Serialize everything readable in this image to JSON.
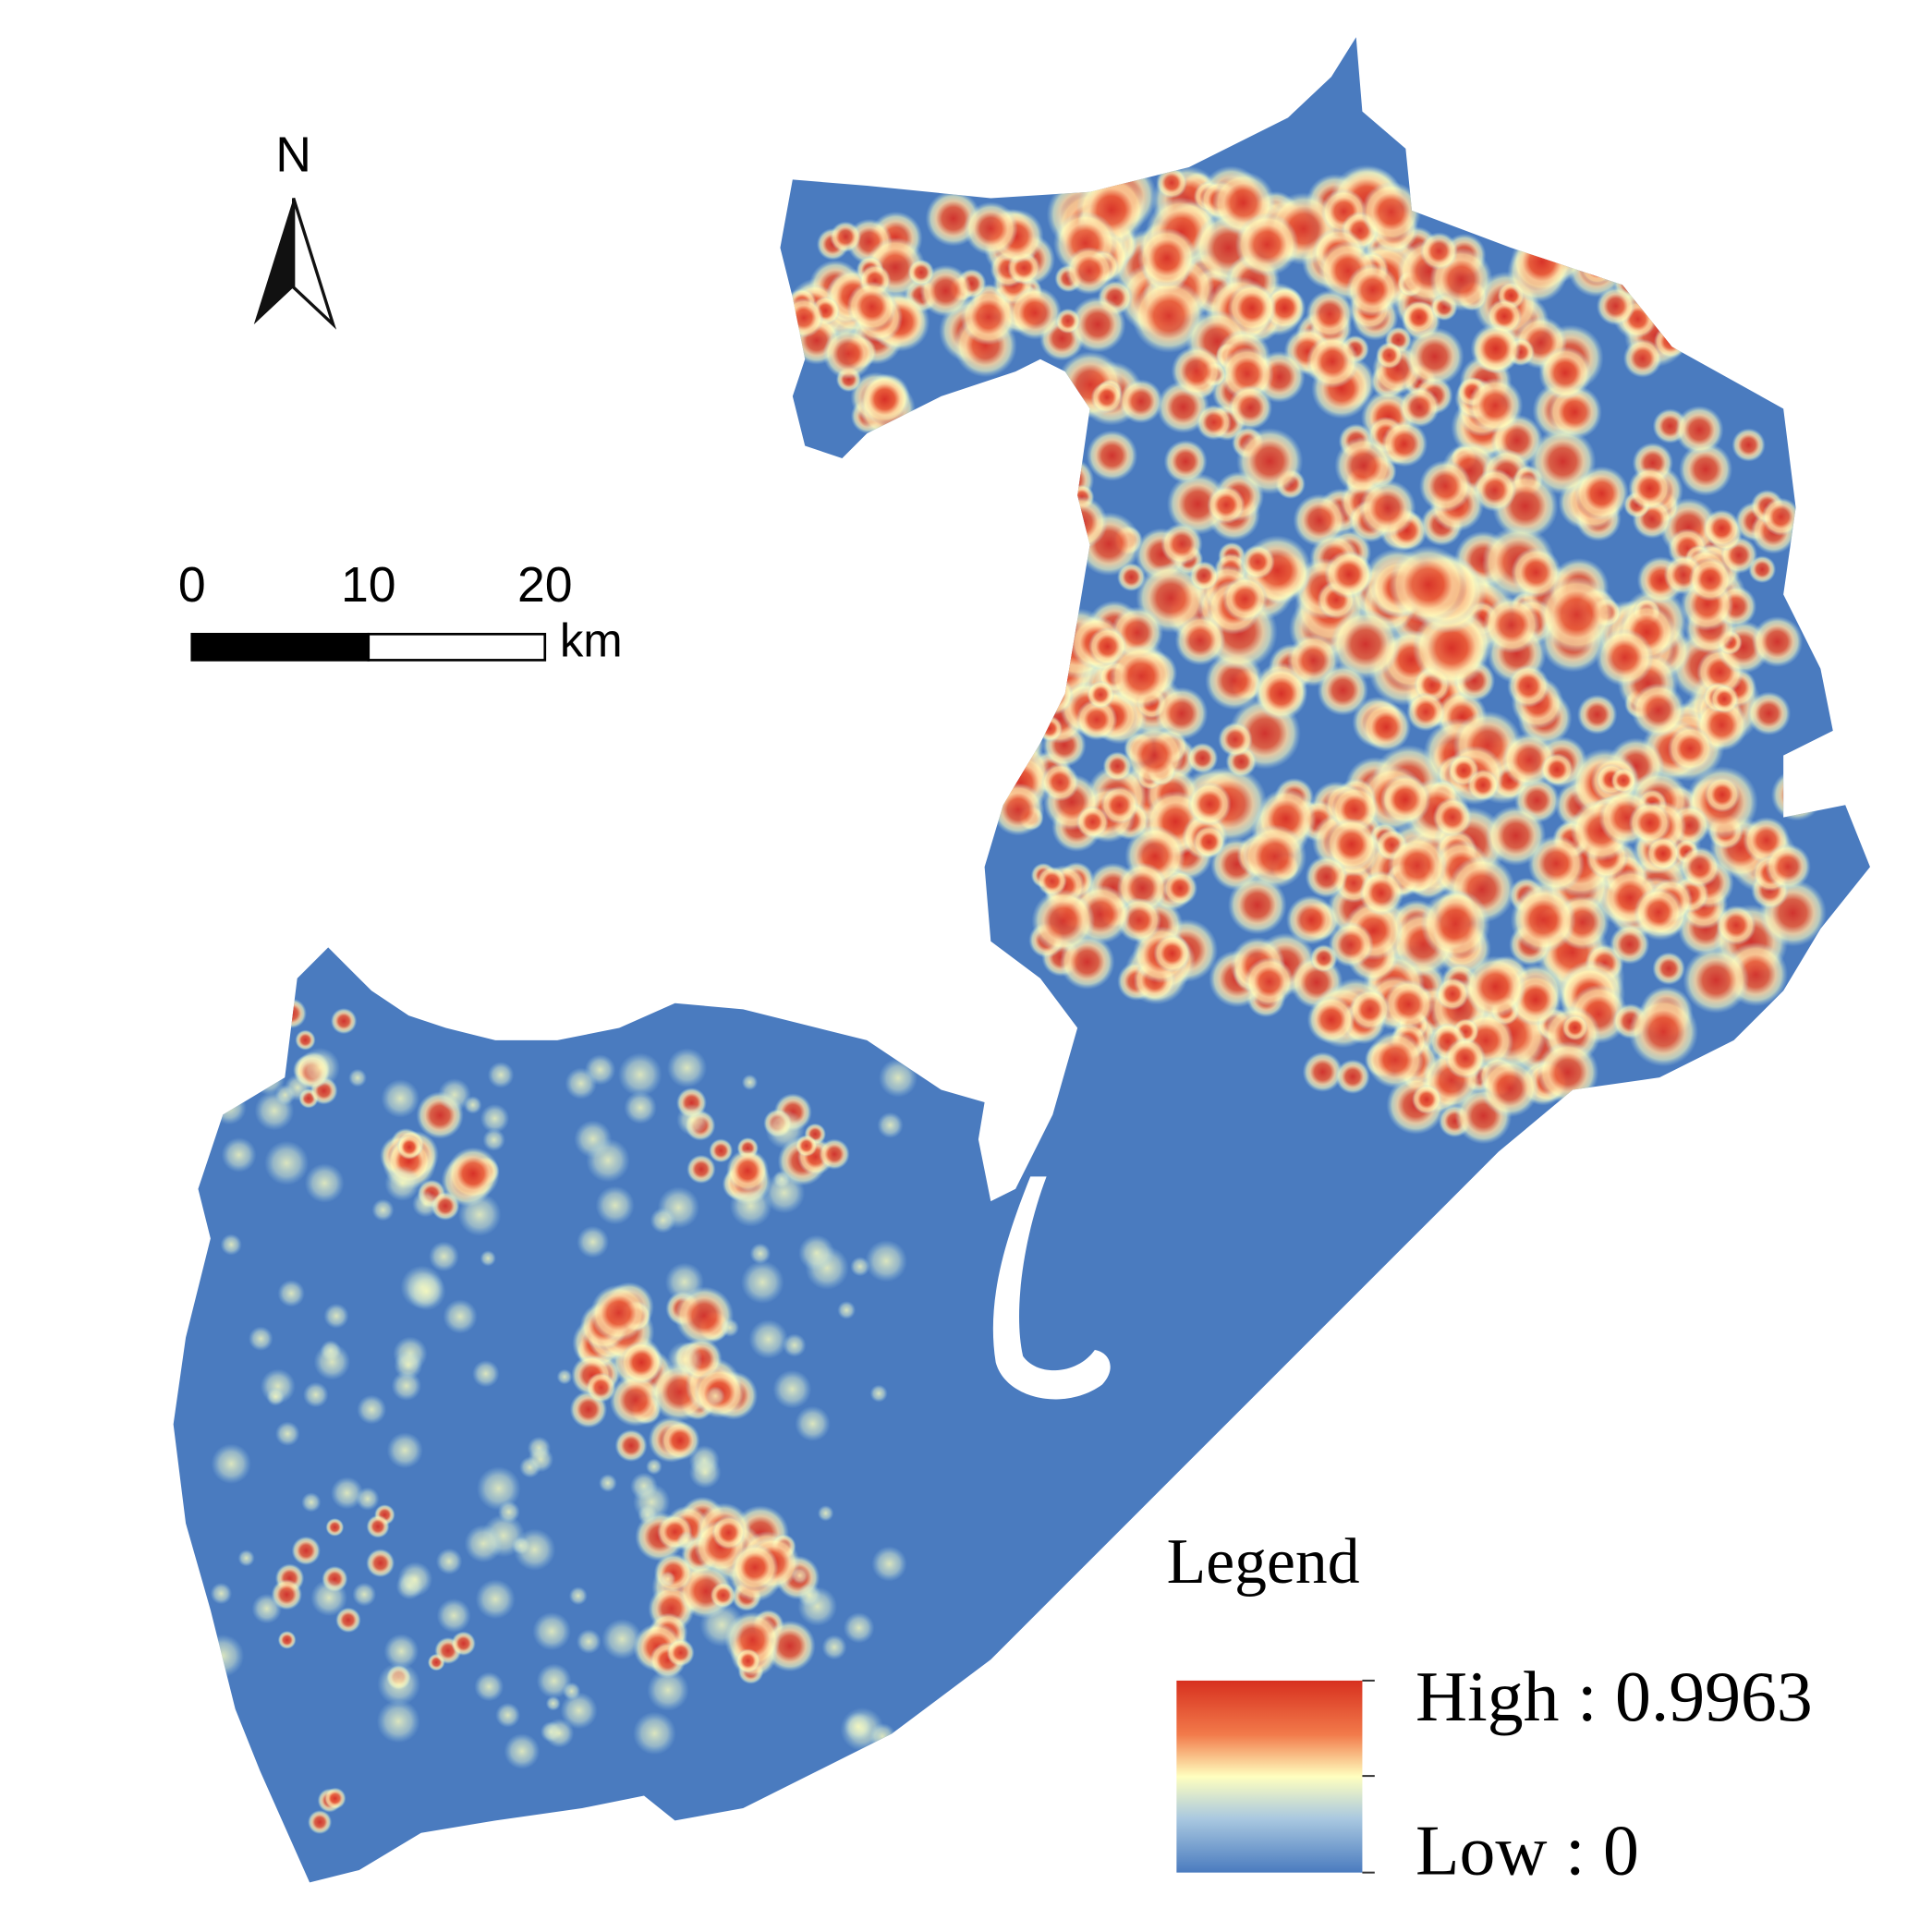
{
  "north_arrow": {
    "label": "N"
  },
  "scale_bar": {
    "ticks": [
      0,
      10,
      20
    ],
    "unit": "km"
  },
  "legend": {
    "title": "Legend",
    "high": "High : 0.9963",
    "low": "Low : 0"
  }
}
